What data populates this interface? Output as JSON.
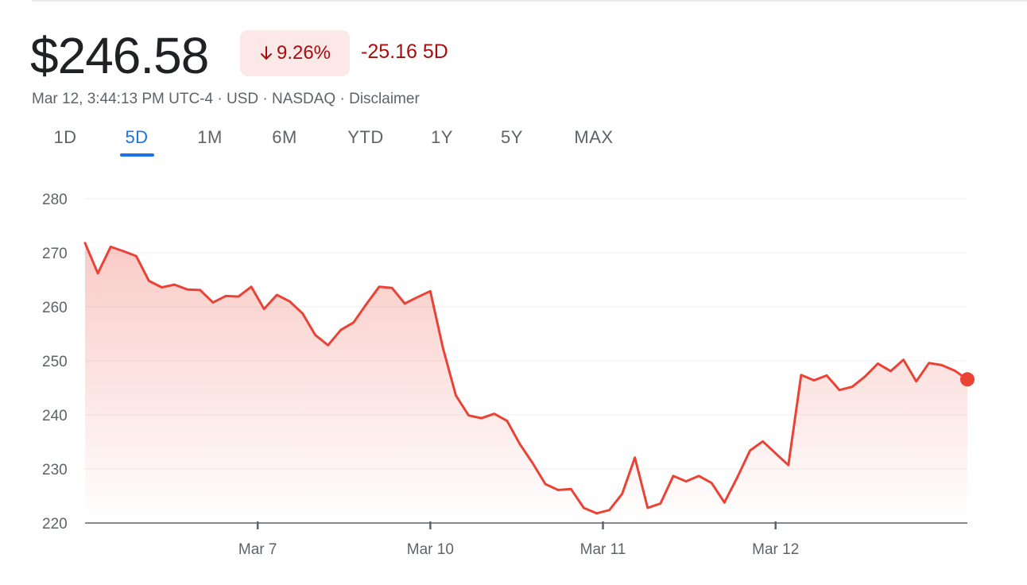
{
  "quote": {
    "price": "$246.58",
    "change_percent": "9.26%",
    "change_abs": "-25.16 5D",
    "meta_prefix": "Mar 12, 3:44:13 PM UTC-4 · USD · NASDAQ · ",
    "disclaimer": "Disclaimer"
  },
  "tabs": [
    {
      "label": "1D",
      "active": false
    },
    {
      "label": "5D",
      "active": true
    },
    {
      "label": "1M",
      "active": false
    },
    {
      "label": "6M",
      "active": false
    },
    {
      "label": "YTD",
      "active": false
    },
    {
      "label": "1Y",
      "active": false
    },
    {
      "label": "5Y",
      "active": false
    },
    {
      "label": "MAX",
      "active": false
    }
  ],
  "colors": {
    "line": "#ea4335",
    "negative_text": "#a50e0e",
    "pill_bg": "#fce8e6",
    "active_tab": "#1a73e8"
  },
  "chart_data": {
    "type": "area",
    "title": "",
    "xlabel": "",
    "ylabel": "",
    "ylim": [
      220,
      280
    ],
    "yticks": [
      220,
      230,
      240,
      250,
      260,
      270,
      280
    ],
    "x_ticks": [
      {
        "label": "Mar 7",
        "index": 13.5
      },
      {
        "label": "Mar 10",
        "index": 27
      },
      {
        "label": "Mar 11",
        "index": 40.5
      },
      {
        "label": "Mar 12",
        "index": 54
      }
    ],
    "grid": true,
    "series": [
      {
        "values": [
          271.8,
          266.2,
          271.1,
          270.3,
          269.4,
          264.8,
          263.6,
          264.1,
          263.2,
          263.1,
          260.8,
          262.0,
          261.9,
          263.7,
          259.6,
          262.2,
          261.0,
          258.8,
          254.8,
          252.9,
          255.7,
          257.1,
          260.5,
          263.7,
          263.5,
          260.6,
          261.8,
          262.9,
          252.3,
          243.6,
          239.9,
          239.4,
          240.2,
          238.9,
          234.6,
          231.1,
          227.2,
          226.1,
          226.3,
          222.8,
          221.8,
          222.4,
          225.4,
          232.1,
          222.8,
          223.6,
          228.7,
          227.7,
          228.7,
          227.4,
          223.8,
          228.4,
          233.4,
          235.1,
          232.9,
          230.7,
          247.4,
          246.4,
          247.3,
          244.6,
          245.2,
          247.1,
          249.5,
          248.1,
          250.2,
          246.2,
          249.6,
          249.2,
          248.2,
          246.58
        ]
      }
    ]
  }
}
